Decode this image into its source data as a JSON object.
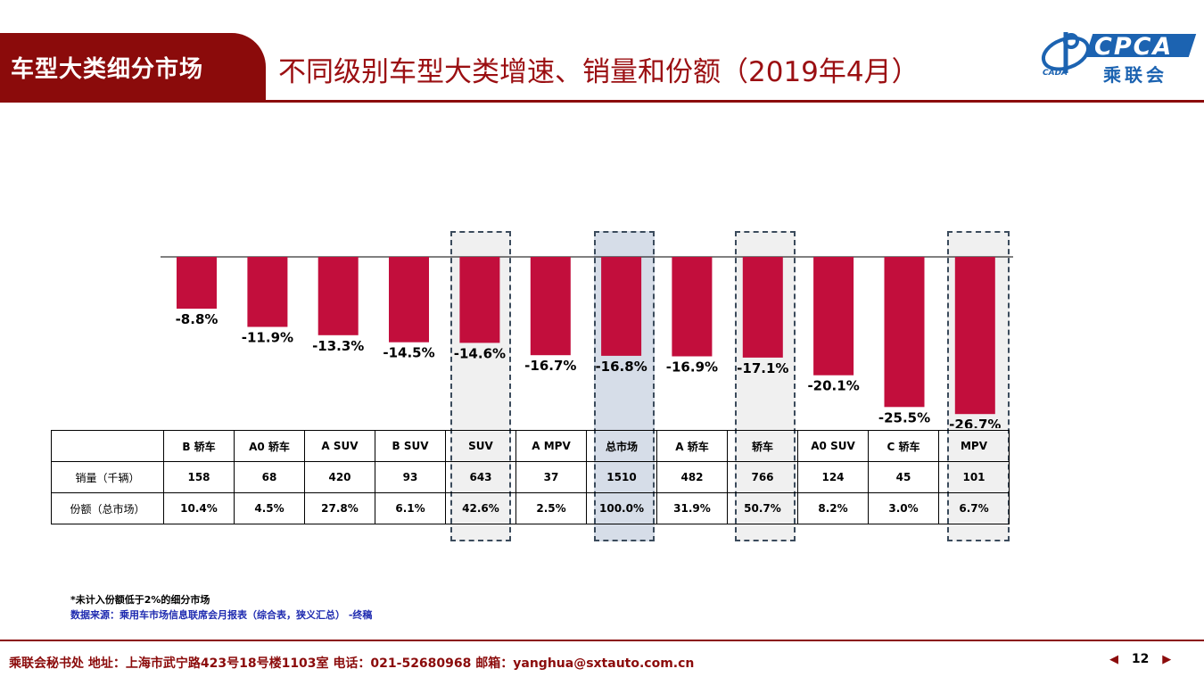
{
  "header": {
    "section": "车型大类细分市场",
    "title": "不同级别车型大类增速、销量和份额（2019年4月）"
  },
  "logo": {
    "primary": "CPCA",
    "chinese": "乘联会",
    "secondary": "CADA"
  },
  "colors": {
    "brand_dark_red": "#8b0b0b",
    "bar": "#c20e3c",
    "highlight_gray": "#f0f0f0",
    "highlight_blue": "#d6dde8",
    "logo_blue": "#1c63b1",
    "source_blue": "#1f2bb0"
  },
  "chart_data": {
    "type": "bar",
    "categories": [
      "B 轿车",
      "A0 轿车",
      "A SUV",
      "B SUV",
      "SUV",
      "A MPV",
      "总市场",
      "A 轿车",
      "轿车",
      "A0 SUV",
      "C 轿车",
      "MPV"
    ],
    "values": [
      -8.8,
      -11.9,
      -13.3,
      -14.5,
      -14.6,
      -16.7,
      -16.8,
      -16.9,
      -17.1,
      -20.1,
      -25.5,
      -26.7
    ],
    "data_labels": [
      "-8.8%",
      "-11.9%",
      "-13.3%",
      "-14.5%",
      "-14.6%",
      "-16.7%",
      "-16.8%",
      "-16.9%",
      "-17.1%",
      "-20.1%",
      "-25.5%",
      "-26.7%"
    ],
    "title": "不同级别车型大类增速、销量和份额（2019年4月）",
    "xlabel": "",
    "ylabel": "",
    "ylim": [
      -30,
      4
    ],
    "grid": false,
    "legend": "none",
    "highlighted_categories": [
      "SUV",
      "总市场",
      "轿车",
      "MPV"
    ]
  },
  "table": {
    "headers": [
      "",
      "B 轿车",
      "A0 轿车",
      "A SUV",
      "B SUV",
      "SUV",
      "A MPV",
      "总市场",
      "A 轿车",
      "轿车",
      "A0 SUV",
      "C 轿车",
      "MPV"
    ],
    "rows": [
      {
        "label": "销量（千辆）",
        "values": [
          "158",
          "68",
          "420",
          "93",
          "643",
          "37",
          "1510",
          "482",
          "766",
          "124",
          "45",
          "101"
        ]
      },
      {
        "label": "份额（总市场）",
        "values": [
          "10.4%",
          "4.5%",
          "27.8%",
          "6.1%",
          "42.6%",
          "2.5%",
          "100.0%",
          "31.9%",
          "50.7%",
          "8.2%",
          "3.0%",
          "6.7%"
        ]
      }
    ]
  },
  "notes": {
    "exclusion": "*未计入份额低于2%的细分市场",
    "source": "数据来源：乘用车市场信息联席会月报表（综合表，狭义汇总） -终稿"
  },
  "footer": {
    "contact": "乘联会秘书处   地址：上海市武宁路423号18号楼1103室  电话：021-52680968   邮箱：yanghua@sxtauto.com.cn",
    "page_number": "12"
  }
}
